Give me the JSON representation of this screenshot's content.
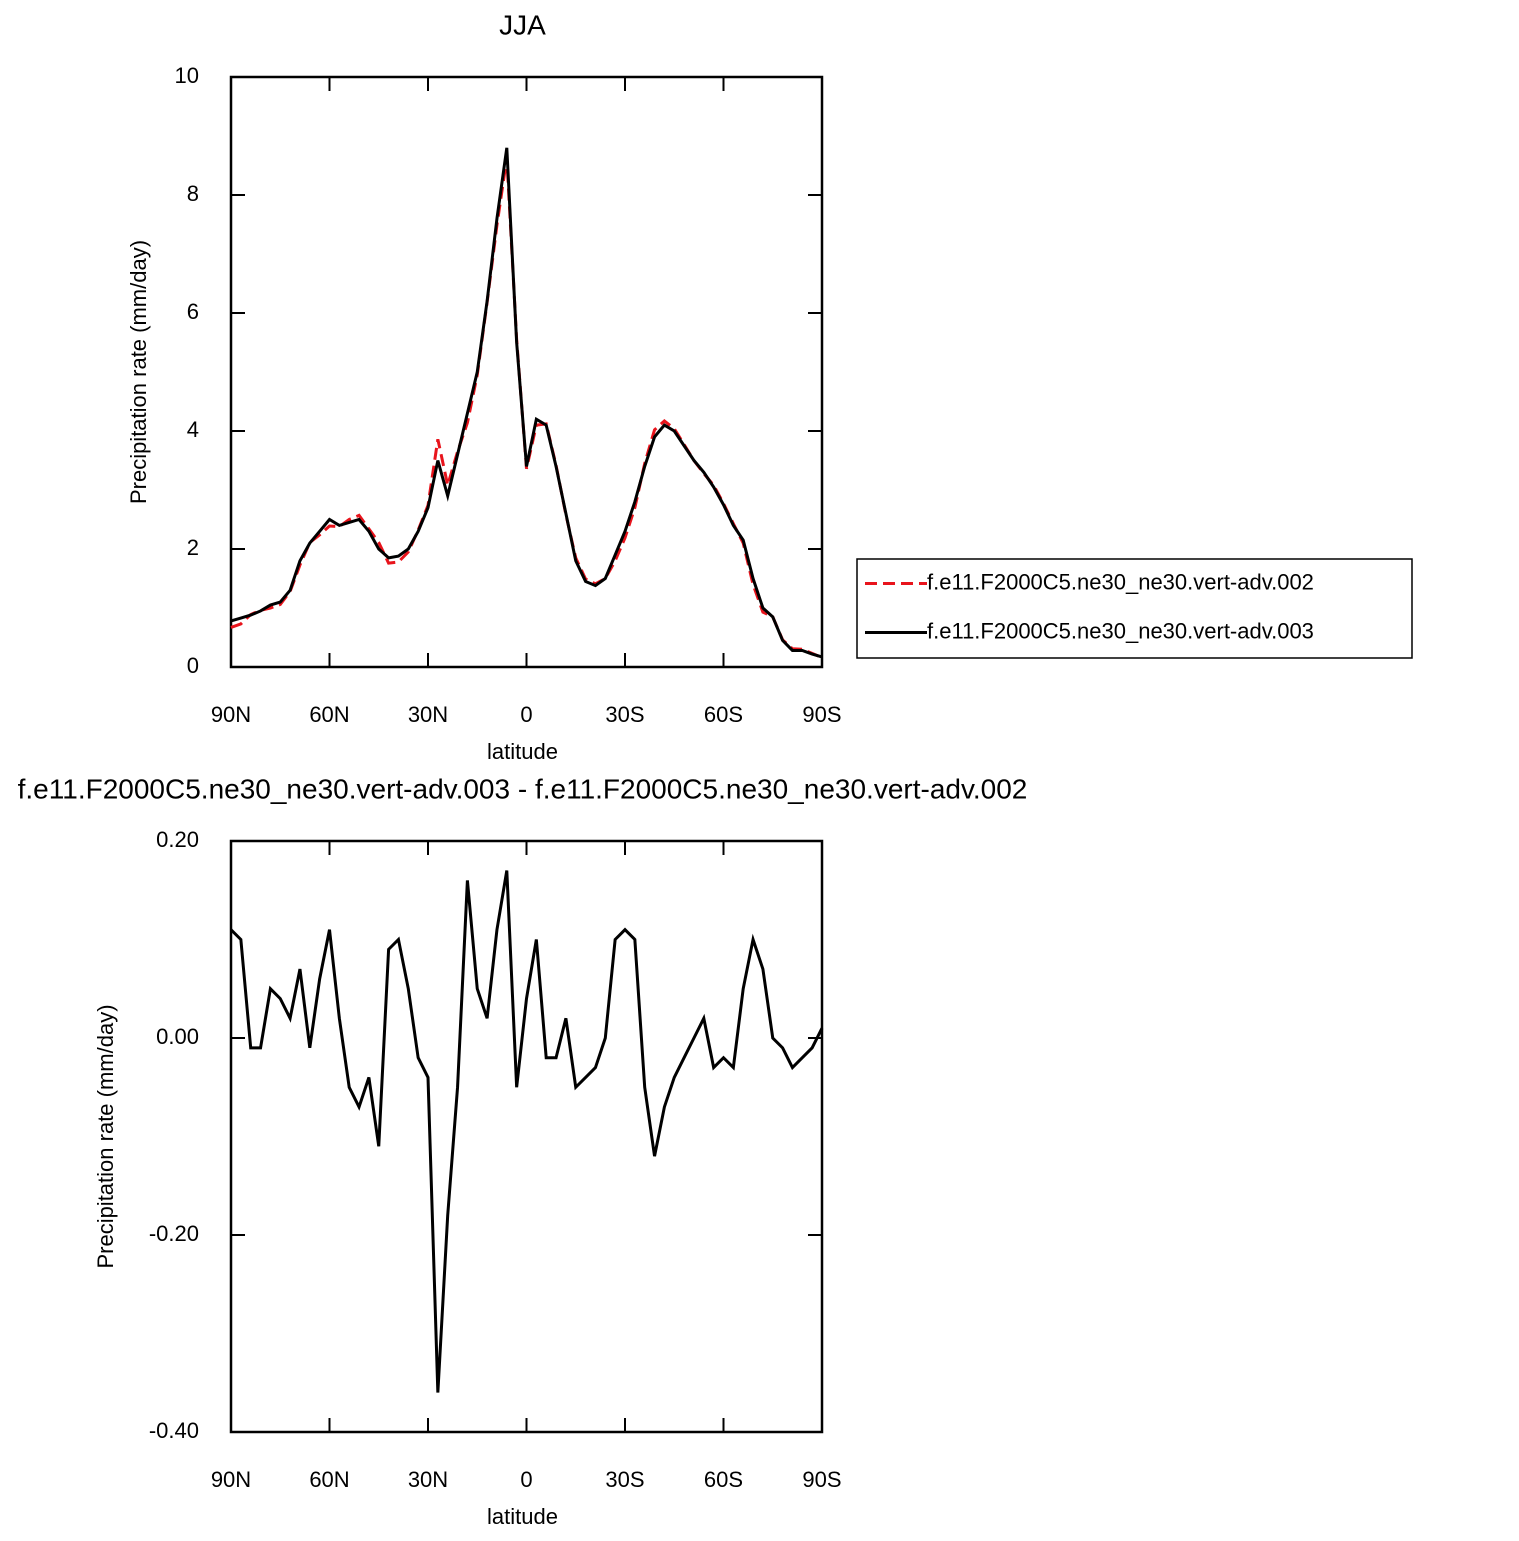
{
  "chart_data": [
    {
      "type": "line",
      "title": "JJA",
      "xlabel": "latitude",
      "ylabel": "Precipitation rate (mm/day)",
      "x": [
        90,
        87,
        84,
        81,
        78,
        75,
        72,
        69,
        66,
        63,
        60,
        57,
        54,
        51,
        48,
        45,
        42,
        39,
        36,
        33,
        30,
        27,
        24,
        21,
        18,
        15,
        12,
        9,
        6,
        3,
        0,
        -3,
        -6,
        -9,
        -12,
        -15,
        -18,
        -21,
        -24,
        -27,
        -30,
        -33,
        -36,
        -39,
        -42,
        -45,
        -48,
        -51,
        -54,
        -57,
        -60,
        -63,
        -66,
        -69,
        -72,
        -75,
        -78,
        -81,
        -84,
        -87,
        -90
      ],
      "series": [
        {
          "name": "f.e11.F2000C5.ne30_ne30.vert-adv.002",
          "color": "#e8141c",
          "line_style": "dashed",
          "values": [
            0.67,
            0.73,
            0.89,
            0.96,
            1.0,
            1.06,
            1.28,
            1.73,
            2.11,
            2.24,
            2.39,
            2.38,
            2.5,
            2.57,
            2.34,
            2.11,
            1.76,
            1.78,
            1.95,
            2.32,
            2.74,
            3.86,
            3.08,
            3.65,
            4.14,
            4.95,
            6.18,
            7.49,
            8.63,
            5.55,
            3.36,
            4.1,
            4.12,
            3.42,
            2.58,
            1.85,
            1.49,
            1.41,
            1.5,
            1.8,
            2.19,
            2.7,
            3.45,
            4.02,
            4.17,
            4.04,
            3.77,
            3.5,
            3.28,
            3.08,
            2.77,
            2.43,
            2.1,
            1.4,
            0.93,
            0.85,
            0.46,
            0.31,
            0.3,
            0.23,
            0.16
          ]
        },
        {
          "name": "f.e11.F2000C5.ne30_ne30.vert-adv.003",
          "color": "#000000",
          "line_style": "solid",
          "values": [
            0.78,
            0.83,
            0.88,
            0.95,
            1.05,
            1.1,
            1.3,
            1.8,
            2.1,
            2.3,
            2.5,
            2.4,
            2.45,
            2.5,
            2.3,
            2.0,
            1.85,
            1.88,
            2.0,
            2.3,
            2.7,
            3.5,
            2.9,
            3.6,
            4.3,
            5.0,
            6.2,
            7.6,
            8.8,
            5.5,
            3.4,
            4.2,
            4.1,
            3.4,
            2.6,
            1.8,
            1.45,
            1.38,
            1.5,
            1.9,
            2.3,
            2.8,
            3.4,
            3.9,
            4.1,
            4.0,
            3.75,
            3.5,
            3.3,
            3.05,
            2.75,
            2.4,
            2.15,
            1.5,
            1.0,
            0.85,
            0.45,
            0.28,
            0.28,
            0.22,
            0.17
          ]
        }
      ],
      "xlim": [
        90,
        -90
      ],
      "xticks": [
        {
          "value": 90,
          "label": "90N"
        },
        {
          "value": 60,
          "label": "60N"
        },
        {
          "value": 30,
          "label": "30N"
        },
        0,
        {
          "value": -30,
          "label": "30S"
        },
        {
          "value": -60,
          "label": "60S"
        },
        {
          "value": -90,
          "label": "90S"
        }
      ],
      "ylim": [
        0,
        10
      ],
      "yticks": [
        0,
        2,
        4,
        6,
        8,
        10
      ],
      "legend": "right"
    },
    {
      "type": "line",
      "title": "f.e11.F2000C5.ne30_ne30.vert-adv.003 - f.e11.F2000C5.ne30_ne30.vert-adv.002",
      "xlabel": "latitude",
      "ylabel": "Precipitation rate (mm/day)",
      "x": [
        90,
        87,
        84,
        81,
        78,
        75,
        72,
        69,
        66,
        63,
        60,
        57,
        54,
        51,
        48,
        45,
        42,
        39,
        36,
        33,
        30,
        27,
        24,
        21,
        18,
        15,
        12,
        9,
        6,
        3,
        0,
        -3,
        -6,
        -9,
        -12,
        -15,
        -18,
        -21,
        -24,
        -27,
        -30,
        -33,
        -36,
        -39,
        -42,
        -45,
        -48,
        -51,
        -54,
        -57,
        -60,
        -63,
        -66,
        -69,
        -72,
        -75,
        -78,
        -81,
        -84,
        -87,
        -90
      ],
      "values": [
        0.11,
        0.1,
        -0.01,
        -0.01,
        0.05,
        0.04,
        0.02,
        0.07,
        -0.01,
        0.06,
        0.11,
        0.02,
        -0.05,
        -0.07,
        -0.04,
        -0.11,
        0.09,
        0.1,
        0.05,
        -0.02,
        -0.04,
        -0.36,
        -0.18,
        -0.05,
        0.16,
        0.05,
        0.02,
        0.11,
        0.17,
        -0.05,
        0.04,
        0.1,
        -0.02,
        -0.02,
        0.02,
        -0.05,
        -0.04,
        -0.03,
        0.0,
        0.1,
        0.11,
        0.1,
        -0.05,
        -0.12,
        -0.07,
        -0.04,
        -0.02,
        0.0,
        0.02,
        -0.03,
        -0.02,
        -0.03,
        0.05,
        0.1,
        0.07,
        0.0,
        -0.01,
        -0.03,
        -0.02,
        -0.01,
        0.01
      ],
      "color": "#000000",
      "xlim": [
        90,
        -90
      ],
      "xticks": [
        {
          "value": 90,
          "label": "90N"
        },
        {
          "value": 60,
          "label": "60N"
        },
        {
          "value": 30,
          "label": "30N"
        },
        0,
        {
          "value": -30,
          "label": "30S"
        },
        {
          "value": -60,
          "label": "60S"
        },
        {
          "value": -90,
          "label": "90S"
        }
      ],
      "ylim": [
        -0.4,
        0.2
      ],
      "yticks": [
        {
          "value": 0.2,
          "label": "0.20"
        },
        {
          "value": 0,
          "label": "0.00"
        },
        {
          "value": -0.2,
          "label": "-0.20"
        },
        {
          "value": -0.4,
          "label": "-0.40"
        }
      ]
    }
  ]
}
